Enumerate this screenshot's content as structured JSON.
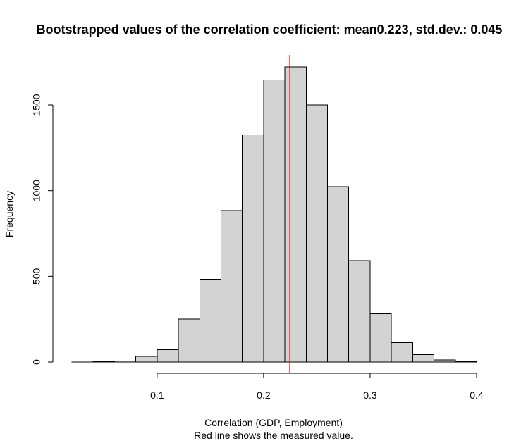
{
  "chart_data": {
    "type": "bar",
    "title": "Bootstrapped values of the correlation coefficient: mean0.223, std.dev.: 0.045",
    "xlabel": "Correlation (GDP, Employment)",
    "xlabel_note": "Red line shows the measured value.",
    "ylabel": "Frequency",
    "bin_edges": [
      0.02,
      0.04,
      0.06,
      0.08,
      0.1,
      0.12,
      0.14,
      0.16,
      0.18,
      0.2,
      0.22,
      0.24,
      0.26,
      0.28,
      0.3,
      0.32,
      0.34,
      0.36,
      0.38,
      0.4
    ],
    "values": [
      1,
      3,
      6,
      32,
      72,
      250,
      483,
      884,
      1325,
      1645,
      1722,
      1500,
      1023,
      591,
      281,
      113,
      43,
      12,
      4
    ],
    "xlim": [
      0.02,
      0.4
    ],
    "ylim": [
      0,
      1722
    ],
    "x_ticks": [
      0.1,
      0.2,
      0.3,
      0.4
    ],
    "x_tick_labels": [
      "0.1",
      "0.2",
      "0.3",
      "0.4"
    ],
    "y_ticks": [
      0,
      500,
      1000,
      1500
    ],
    "y_tick_labels": [
      "0",
      "500",
      "1000",
      "1500"
    ],
    "measured_value": 0.2245,
    "bar_color": "#d3d3d3",
    "line_color": "#ff0000",
    "grid": false,
    "legend": "none"
  }
}
